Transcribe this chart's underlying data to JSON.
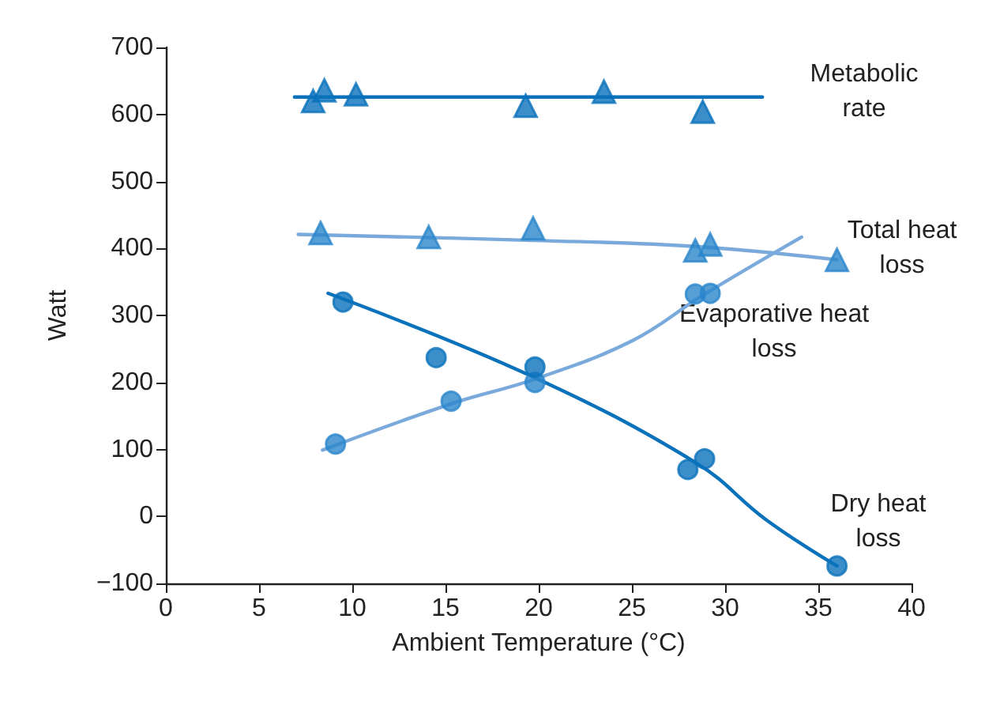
{
  "chart_data": {
    "type": "scatter",
    "xlabel": "Ambient Temperature (°C)",
    "ylabel": "Watt",
    "xlim": [
      0,
      40
    ],
    "xticks": [
      0,
      5,
      10,
      15,
      20,
      25,
      30,
      35,
      40
    ],
    "ylim": [
      -100,
      700
    ],
    "yticks": [
      {
        "value": -100,
        "label": "−100"
      },
      0,
      100,
      200,
      300,
      400,
      500,
      600,
      700
    ],
    "grid": false,
    "series": [
      {
        "marker": "triangle",
        "color": "#0a72bb",
        "x": [
          7.9,
          8.5,
          10.2,
          19.3,
          23.5,
          28.8
        ],
        "values": [
          620,
          636,
          630,
          613,
          634,
          604
        ]
      },
      {
        "type": "line",
        "marker": "none",
        "color": "#0a72bb",
        "x": [
          6.9,
          32
        ],
        "values": [
          626,
          626
        ]
      },
      {
        "marker": "triangle",
        "color": "#2a86cc",
        "x": [
          8.3,
          14.1,
          19.7,
          28.4,
          29.2,
          36
        ],
        "values": [
          423,
          417,
          430,
          397,
          406,
          383
        ]
      },
      {
        "type": "line",
        "marker": "none",
        "color": "#7aaadc",
        "x": [
          7.1,
          19.7,
          28.4,
          36
        ],
        "values": [
          421,
          412,
          403,
          383
        ]
      },
      {
        "marker": "circle",
        "color": "#2a86cc",
        "x": [
          9.1,
          15.3,
          19.8,
          28.4,
          29.2
        ],
        "values": [
          108,
          172,
          200,
          332,
          333
        ]
      },
      {
        "type": "line",
        "marker": "none",
        "color": "#7aaadc",
        "x": [
          8.4,
          15.3,
          19.8,
          25,
          28.8,
          34.1
        ],
        "values": [
          99,
          168,
          205,
          262,
          330,
          417
        ]
      },
      {
        "marker": "circle",
        "color": "#0a72bb",
        "x": [
          9.5,
          14.5,
          19.8,
          28,
          28.9,
          36
        ],
        "values": [
          320,
          237,
          223,
          70,
          86,
          -74
        ]
      },
      {
        "type": "line",
        "marker": "none",
        "color": "#0a72bb",
        "x": [
          8.7,
          19.4,
          28.5,
          32.2,
          36
        ],
        "values": [
          333,
          212,
          79,
          -5,
          -74
        ]
      }
    ],
    "annotations": [
      "Metabolic\nrate",
      "Total heat\nloss",
      "Evaporative heat\nloss",
      "Dry heat\nloss"
    ]
  }
}
